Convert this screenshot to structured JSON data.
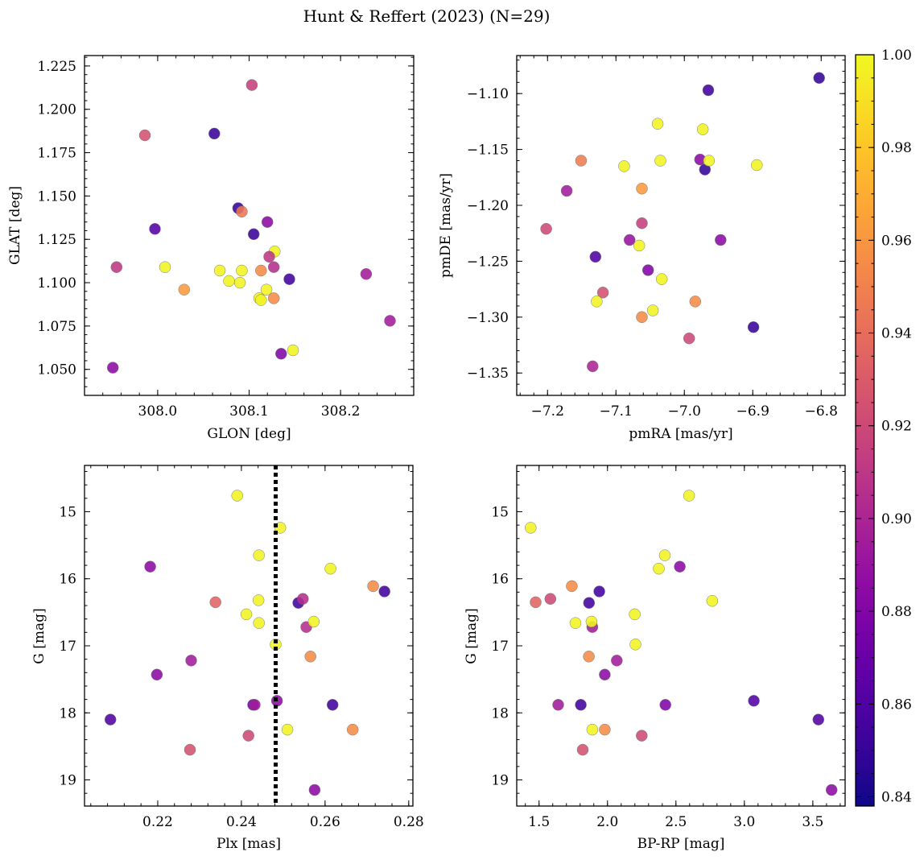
{
  "title": "Hunt & Reffert (2023) (N=29)",
  "colorbar": {
    "cmap": "plasma",
    "vmin": 0.838,
    "vmax": 1.0,
    "ticks": [
      "0.84",
      "0.86",
      "0.88",
      "0.90",
      "0.92",
      "0.94",
      "0.96",
      "0.98",
      "1.00"
    ],
    "tick_values": [
      0.84,
      0.86,
      0.88,
      0.9,
      0.92,
      0.94,
      0.96,
      0.98,
      1.0
    ]
  },
  "chart_data": [
    {
      "type": "scatter",
      "id": "glon-glat",
      "xlabel": "GLON [deg]",
      "ylabel": "GLAT [deg]",
      "xlim": [
        307.92,
        308.28
      ],
      "ylim": [
        1.035,
        1.231
      ],
      "y_inverted": false,
      "xticks": [
        308.0,
        308.1,
        308.2
      ],
      "xtick_labels": [
        "308.0",
        "308.1",
        "308.2"
      ],
      "xminor": 0.02,
      "yticks": [
        1.05,
        1.075,
        1.1,
        1.125,
        1.15,
        1.175,
        1.2,
        1.225
      ],
      "ytick_labels": [
        "1.050",
        "1.075",
        "1.100",
        "1.125",
        "1.150",
        "1.175",
        "1.200",
        "1.225"
      ],
      "yminor": 0.005,
      "points": [
        {
          "x": 308.103,
          "y": 1.214,
          "c": 0.915
        },
        {
          "x": 307.986,
          "y": 1.185,
          "c": 0.925
        },
        {
          "x": 308.062,
          "y": 1.186,
          "c": 0.852
        },
        {
          "x": 308.088,
          "y": 1.143,
          "c": 0.85
        },
        {
          "x": 308.092,
          "y": 1.141,
          "c": 0.945
        },
        {
          "x": 307.997,
          "y": 1.131,
          "c": 0.862
        },
        {
          "x": 308.12,
          "y": 1.135,
          "c": 0.885
        },
        {
          "x": 308.105,
          "y": 1.128,
          "c": 0.852
        },
        {
          "x": 308.128,
          "y": 1.118,
          "c": 0.998
        },
        {
          "x": 308.122,
          "y": 1.115,
          "c": 0.91
        },
        {
          "x": 307.955,
          "y": 1.109,
          "c": 0.91
        },
        {
          "x": 308.008,
          "y": 1.109,
          "c": 0.998
        },
        {
          "x": 308.127,
          "y": 1.109,
          "c": 0.905
        },
        {
          "x": 308.068,
          "y": 1.107,
          "c": 0.998
        },
        {
          "x": 308.092,
          "y": 1.107,
          "c": 0.998
        },
        {
          "x": 308.113,
          "y": 1.107,
          "c": 0.955
        },
        {
          "x": 308.078,
          "y": 1.101,
          "c": 0.998
        },
        {
          "x": 308.09,
          "y": 1.1,
          "c": 0.998
        },
        {
          "x": 308.144,
          "y": 1.102,
          "c": 0.855
        },
        {
          "x": 308.228,
          "y": 1.105,
          "c": 0.895
        },
        {
          "x": 308.029,
          "y": 1.096,
          "c": 0.962
        },
        {
          "x": 308.119,
          "y": 1.096,
          "c": 0.998
        },
        {
          "x": 308.111,
          "y": 1.091,
          "c": 0.998
        },
        {
          "x": 308.113,
          "y": 1.09,
          "c": 0.998
        },
        {
          "x": 308.127,
          "y": 1.091,
          "c": 0.955
        },
        {
          "x": 308.254,
          "y": 1.078,
          "c": 0.895
        },
        {
          "x": 308.135,
          "y": 1.059,
          "c": 0.88
        },
        {
          "x": 308.148,
          "y": 1.061,
          "c": 0.998
        },
        {
          "x": 307.951,
          "y": 1.051,
          "c": 0.885
        }
      ]
    },
    {
      "type": "scatter",
      "id": "pmra-pmde",
      "xlabel": "pmRA [mas/yr]",
      "ylabel": "pmDE [mas/yr]",
      "xlim": [
        -7.245,
        -6.765
      ],
      "ylim": [
        -1.37,
        -1.066
      ],
      "y_inverted": false,
      "xticks": [
        -7.2,
        -7.1,
        -7.0,
        -6.9,
        -6.8
      ],
      "xtick_labels": [
        "−7.2",
        "−7.1",
        "−7.0",
        "−6.9",
        "−6.8"
      ],
      "xminor": 0.02,
      "yticks": [
        -1.35,
        -1.3,
        -1.25,
        -1.2,
        -1.15,
        -1.1
      ],
      "ytick_labels": [
        "−1.35",
        "−1.30",
        "−1.25",
        "−1.20",
        "−1.15",
        "−1.10"
      ],
      "yminor": 0.01,
      "points": [
        {
          "x": -6.803,
          "y": -1.086,
          "c": 0.85
        },
        {
          "x": -6.965,
          "y": -1.097,
          "c": 0.855
        },
        {
          "x": -7.039,
          "y": -1.127,
          "c": 0.998
        },
        {
          "x": -6.973,
          "y": -1.132,
          "c": 0.998
        },
        {
          "x": -7.151,
          "y": -1.16,
          "c": 0.948
        },
        {
          "x": -7.088,
          "y": -1.165,
          "c": 0.998
        },
        {
          "x": -7.035,
          "y": -1.16,
          "c": 0.998
        },
        {
          "x": -6.977,
          "y": -1.159,
          "c": 0.885
        },
        {
          "x": -6.97,
          "y": -1.168,
          "c": 0.85
        },
        {
          "x": -6.964,
          "y": -1.16,
          "c": 0.998
        },
        {
          "x": -6.894,
          "y": -1.164,
          "c": 0.998
        },
        {
          "x": -7.172,
          "y": -1.187,
          "c": 0.895
        },
        {
          "x": -7.062,
          "y": -1.185,
          "c": 0.962
        },
        {
          "x": -7.202,
          "y": -1.221,
          "c": 0.92
        },
        {
          "x": -7.062,
          "y": -1.216,
          "c": 0.915
        },
        {
          "x": -7.08,
          "y": -1.231,
          "c": 0.89
        },
        {
          "x": -7.066,
          "y": -1.236,
          "c": 0.998
        },
        {
          "x": -6.947,
          "y": -1.231,
          "c": 0.885
        },
        {
          "x": -7.13,
          "y": -1.246,
          "c": 0.86
        },
        {
          "x": -7.053,
          "y": -1.258,
          "c": 0.88
        },
        {
          "x": -7.033,
          "y": -1.266,
          "c": 0.998
        },
        {
          "x": -7.119,
          "y": -1.278,
          "c": 0.925
        },
        {
          "x": -7.128,
          "y": -1.286,
          "c": 0.998
        },
        {
          "x": -6.984,
          "y": -1.286,
          "c": 0.955
        },
        {
          "x": -7.046,
          "y": -1.294,
          "c": 0.998
        },
        {
          "x": -7.062,
          "y": -1.3,
          "c": 0.955
        },
        {
          "x": -6.899,
          "y": -1.309,
          "c": 0.852
        },
        {
          "x": -6.993,
          "y": -1.319,
          "c": 0.92
        },
        {
          "x": -7.134,
          "y": -1.344,
          "c": 0.9
        }
      ]
    },
    {
      "type": "scatter",
      "id": "plx-g",
      "xlabel": "Plx [mas]",
      "ylabel": "G [mag]",
      "xlim": [
        0.2025,
        0.281
      ],
      "ylim": [
        19.39,
        14.31
      ],
      "y_inverted": true,
      "xticks": [
        0.22,
        0.24,
        0.26,
        0.28
      ],
      "xtick_labels": [
        "0.22",
        "0.24",
        "0.26",
        "0.28"
      ],
      "xminor": 0.004,
      "yticks": [
        15,
        16,
        17,
        18,
        19
      ],
      "ytick_labels": [
        "15",
        "16",
        "17",
        "18",
        "19"
      ],
      "yminor": 0.2,
      "vline": {
        "x": 0.2482,
        "style": "dotted"
      },
      "points": [
        {
          "x": 0.239,
          "y": 14.76,
          "c": 0.998
        },
        {
          "x": 0.2493,
          "y": 15.24,
          "c": 0.998
        },
        {
          "x": 0.2442,
          "y": 15.65,
          "c": 0.998
        },
        {
          "x": 0.2182,
          "y": 15.82,
          "c": 0.885
        },
        {
          "x": 0.2613,
          "y": 15.85,
          "c": 0.998
        },
        {
          "x": 0.2715,
          "y": 16.11,
          "c": 0.955
        },
        {
          "x": 0.2742,
          "y": 16.19,
          "c": 0.855
        },
        {
          "x": 0.2338,
          "y": 16.35,
          "c": 0.935
        },
        {
          "x": 0.2441,
          "y": 16.32,
          "c": 0.998
        },
        {
          "x": 0.2536,
          "y": 16.36,
          "c": 0.855
        },
        {
          "x": 0.2547,
          "y": 16.3,
          "c": 0.905
        },
        {
          "x": 0.2412,
          "y": 16.53,
          "c": 0.998
        },
        {
          "x": 0.2555,
          "y": 16.72,
          "c": 0.905
        },
        {
          "x": 0.2442,
          "y": 16.66,
          "c": 0.998
        },
        {
          "x": 0.2573,
          "y": 16.64,
          "c": 0.998
        },
        {
          "x": 0.2482,
          "y": 16.98,
          "c": 0.998
        },
        {
          "x": 0.2565,
          "y": 17.16,
          "c": 0.955
        },
        {
          "x": 0.228,
          "y": 17.22,
          "c": 0.895
        },
        {
          "x": 0.2198,
          "y": 17.43,
          "c": 0.885
        },
        {
          "x": 0.2428,
          "y": 17.88,
          "c": 0.865
        },
        {
          "x": 0.2432,
          "y": 17.88,
          "c": 0.895
        },
        {
          "x": 0.2485,
          "y": 17.82,
          "c": 0.885
        },
        {
          "x": 0.2618,
          "y": 17.88,
          "c": 0.855
        },
        {
          "x": 0.2087,
          "y": 18.1,
          "c": 0.86
        },
        {
          "x": 0.251,
          "y": 18.25,
          "c": 0.998
        },
        {
          "x": 0.2666,
          "y": 18.25,
          "c": 0.955
        },
        {
          "x": 0.2417,
          "y": 18.34,
          "c": 0.92
        },
        {
          "x": 0.2277,
          "y": 18.55,
          "c": 0.925
        },
        {
          "x": 0.2575,
          "y": 19.15,
          "c": 0.885
        }
      ]
    },
    {
      "type": "scatter",
      "id": "bprp-g",
      "xlabel": "BP-RP [mag]",
      "ylabel": "G [mag]",
      "xlim": [
        1.337,
        3.736
      ],
      "ylim": [
        19.39,
        14.31
      ],
      "y_inverted": true,
      "xticks": [
        1.5,
        2.0,
        2.5,
        3.0,
        3.5
      ],
      "xtick_labels": [
        "1.5",
        "2.0",
        "2.5",
        "3.0",
        "3.5"
      ],
      "xminor": 0.1,
      "yticks": [
        15,
        16,
        17,
        18,
        19
      ],
      "ytick_labels": [
        "15",
        "16",
        "17",
        "18",
        "19"
      ],
      "yminor": 0.2,
      "points": [
        {
          "x": 2.596,
          "y": 14.76,
          "c": 0.998
        },
        {
          "x": 1.439,
          "y": 15.24,
          "c": 0.998
        },
        {
          "x": 2.419,
          "y": 15.65,
          "c": 0.998
        },
        {
          "x": 2.528,
          "y": 15.82,
          "c": 0.885
        },
        {
          "x": 2.375,
          "y": 15.85,
          "c": 0.998
        },
        {
          "x": 1.739,
          "y": 16.11,
          "c": 0.955
        },
        {
          "x": 1.94,
          "y": 16.19,
          "c": 0.855
        },
        {
          "x": 1.475,
          "y": 16.35,
          "c": 0.935
        },
        {
          "x": 1.583,
          "y": 16.3,
          "c": 0.92
        },
        {
          "x": 1.865,
          "y": 16.36,
          "c": 0.855
        },
        {
          "x": 2.765,
          "y": 16.33,
          "c": 0.998
        },
        {
          "x": 2.199,
          "y": 16.53,
          "c": 0.998
        },
        {
          "x": 1.889,
          "y": 16.72,
          "c": 0.895
        },
        {
          "x": 1.766,
          "y": 16.66,
          "c": 0.998
        },
        {
          "x": 1.883,
          "y": 16.64,
          "c": 0.998
        },
        {
          "x": 2.204,
          "y": 16.98,
          "c": 0.998
        },
        {
          "x": 1.864,
          "y": 17.16,
          "c": 0.955
        },
        {
          "x": 2.068,
          "y": 17.22,
          "c": 0.895
        },
        {
          "x": 1.98,
          "y": 17.43,
          "c": 0.885
        },
        {
          "x": 1.64,
          "y": 17.88,
          "c": 0.895
        },
        {
          "x": 1.805,
          "y": 17.88,
          "c": 0.855
        },
        {
          "x": 2.423,
          "y": 17.88,
          "c": 0.88
        },
        {
          "x": 3.069,
          "y": 17.82,
          "c": 0.86
        },
        {
          "x": 3.541,
          "y": 18.1,
          "c": 0.86
        },
        {
          "x": 1.889,
          "y": 18.25,
          "c": 0.998
        },
        {
          "x": 1.98,
          "y": 18.25,
          "c": 0.955
        },
        {
          "x": 2.25,
          "y": 18.34,
          "c": 0.92
        },
        {
          "x": 1.819,
          "y": 18.55,
          "c": 0.925
        },
        {
          "x": 3.637,
          "y": 19.15,
          "c": 0.885
        }
      ]
    }
  ]
}
